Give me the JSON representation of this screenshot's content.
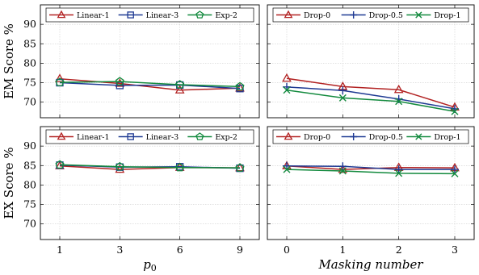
{
  "chart_data": [
    {
      "type": "line",
      "panel": "top-left",
      "ylabel": "EM Score %",
      "xlabel": "",
      "x_positions": [
        "1",
        "3",
        "6",
        "9"
      ],
      "ylim": [
        66,
        95
      ],
      "yticks": [
        70,
        75,
        80,
        85,
        90
      ],
      "legend_position": "top",
      "series": [
        {
          "name": "Linear-1",
          "color": "#b22222",
          "marker": "triangle",
          "values": [
            76.0,
            74.8,
            73.1,
            73.6
          ]
        },
        {
          "name": "Linear-3",
          "color": "#1f3a93",
          "marker": "square",
          "values": [
            75.0,
            74.3,
            74.4,
            73.5
          ]
        },
        {
          "name": "Exp-2",
          "color": "#138a3e",
          "marker": "pentagon",
          "values": [
            75.1,
            75.3,
            74.5,
            74.0
          ]
        }
      ]
    },
    {
      "type": "line",
      "panel": "top-right",
      "ylabel": "",
      "xlabel": "",
      "x_positions": [
        "0",
        "1",
        "2",
        "3"
      ],
      "ylim": [
        66,
        95
      ],
      "yticks": [
        70,
        75,
        80,
        85,
        90
      ],
      "legend_position": "top",
      "series": [
        {
          "name": "Drop-0",
          "color": "#b22222",
          "marker": "triangle",
          "values": [
            76.1,
            74.0,
            73.2,
            68.7
          ]
        },
        {
          "name": "Drop-0.5",
          "color": "#1f3a93",
          "marker": "plus",
          "values": [
            73.9,
            73.0,
            70.8,
            68.3
          ]
        },
        {
          "name": "Drop-1",
          "color": "#138a3e",
          "marker": "x",
          "values": [
            73.1,
            71.1,
            70.2,
            67.6
          ]
        }
      ]
    },
    {
      "type": "line",
      "panel": "bottom-left",
      "ylabel": "EX Score %",
      "xlabel": "p0",
      "x_positions": [
        "1",
        "3",
        "6",
        "9"
      ],
      "ylim": [
        66,
        95
      ],
      "yticks": [
        70,
        75,
        80,
        85,
        90
      ],
      "legend_position": "top",
      "series": [
        {
          "name": "Linear-1",
          "color": "#b22222",
          "marker": "triangle",
          "values": [
            84.9,
            84.0,
            84.5,
            84.4
          ]
        },
        {
          "name": "Linear-3",
          "color": "#1f3a93",
          "marker": "square",
          "values": [
            85.1,
            84.6,
            84.7,
            84.3
          ]
        },
        {
          "name": "Exp-2",
          "color": "#138a3e",
          "marker": "pentagon",
          "values": [
            85.2,
            84.7,
            84.5,
            84.4
          ]
        }
      ]
    },
    {
      "type": "line",
      "panel": "bottom-right",
      "ylabel": "",
      "xlabel": "Masking number",
      "x_positions": [
        "0",
        "1",
        "2",
        "3"
      ],
      "ylim": [
        66,
        95
      ],
      "yticks": [
        70,
        75,
        80,
        85,
        90
      ],
      "legend_position": "top",
      "series": [
        {
          "name": "Drop-0",
          "color": "#b22222",
          "marker": "triangle",
          "values": [
            84.9,
            84.0,
            84.5,
            84.4
          ]
        },
        {
          "name": "Drop-0.5",
          "color": "#1f3a93",
          "marker": "plus",
          "values": [
            84.9,
            84.8,
            84.0,
            84.0
          ]
        },
        {
          "name": "Drop-1",
          "color": "#138a3e",
          "marker": "x",
          "values": [
            84.0,
            83.6,
            83.0,
            82.9
          ]
        }
      ]
    }
  ]
}
